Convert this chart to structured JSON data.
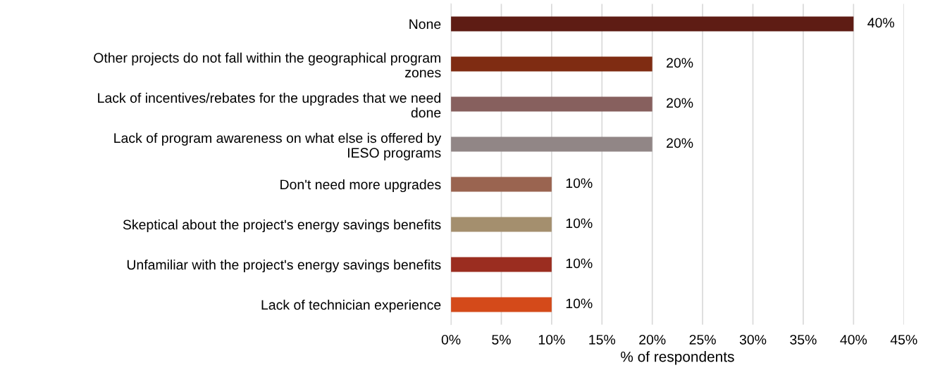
{
  "chart_data": {
    "type": "bar",
    "orientation": "horizontal",
    "xlabel": "% of respondents",
    "categories": [
      "None",
      "Other projects do not fall within the geographical program\nzones",
      "Lack of incentives/rebates for the upgrades that we need\ndone",
      "Lack of program awareness on what else is offered by\nIESO programs",
      "Don't need more upgrades",
      "Skeptical about the project's energy savings benefits",
      "Unfamiliar with the project's energy savings benefits",
      "Lack of technician experience"
    ],
    "values": [
      40,
      20,
      20,
      20,
      10,
      10,
      10,
      10
    ],
    "value_labels": [
      "40%",
      "20%",
      "20%",
      "20%",
      "10%",
      "10%",
      "10%",
      "10%"
    ],
    "colors": [
      "#5e1c14",
      "#7f2c12",
      "#87605e",
      "#918686",
      "#9a6450",
      "#a48f6e",
      "#9b2d20",
      "#d44a1a"
    ],
    "xlim": [
      0,
      45
    ],
    "xticks": [
      {
        "value": 0,
        "label": "0%"
      },
      {
        "value": 5,
        "label": "5%"
      },
      {
        "value": 10,
        "label": "10%"
      },
      {
        "value": 15,
        "label": "15%"
      },
      {
        "value": 20,
        "label": "20%"
      },
      {
        "value": 25,
        "label": "25%"
      },
      {
        "value": 30,
        "label": "30%"
      },
      {
        "value": 35,
        "label": "35%"
      },
      {
        "value": 40,
        "label": "40%"
      },
      {
        "value": 45,
        "label": "45%"
      }
    ],
    "grid": "x",
    "legend": false
  }
}
